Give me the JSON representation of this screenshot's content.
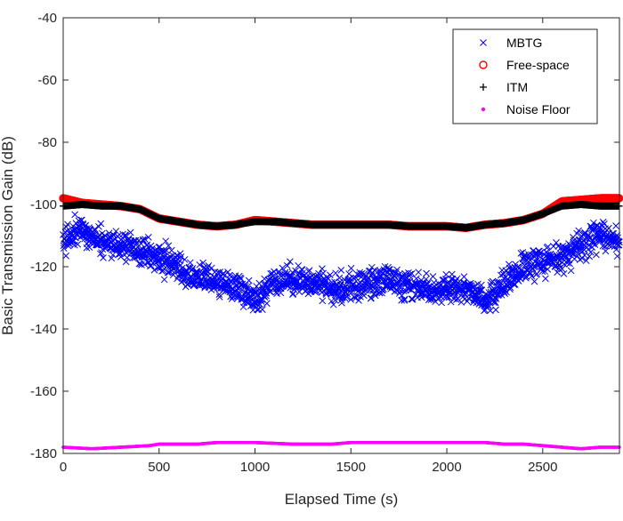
{
  "chart_data": {
    "type": "scatter",
    "title": "",
    "xlabel": "Elapsed Time (s)",
    "ylabel": "Basic Transmission Gain (dB)",
    "xlim": [
      0,
      2900
    ],
    "ylim": [
      -180,
      -40
    ],
    "xticks": [
      0,
      500,
      1000,
      1500,
      2000,
      2500
    ],
    "yticks": [
      -180,
      -160,
      -140,
      -120,
      -100,
      -80,
      -60,
      -40
    ],
    "grid": false,
    "legend_position": "top-right",
    "series": [
      {
        "name": "MBTG",
        "marker": "x",
        "color": "#0000ff",
        "trend_x": [
          0,
          100,
          200,
          300,
          400,
          500,
          600,
          700,
          800,
          900,
          1000,
          1100,
          1200,
          1300,
          1400,
          1500,
          1600,
          1700,
          1800,
          1900,
          2000,
          2100,
          2200,
          2300,
          2400,
          2500,
          2600,
          2700,
          2800,
          2900
        ],
        "trend_y": [
          -112,
          -108,
          -112,
          -113,
          -115,
          -117,
          -121,
          -123,
          -125,
          -126,
          -131,
          -124,
          -125,
          -124,
          -127,
          -126,
          -126,
          -124,
          -126,
          -127,
          -128,
          -127,
          -131,
          -126,
          -120,
          -118,
          -117,
          -113,
          -110,
          -112
        ],
        "spread_dB": 7
      },
      {
        "name": "Free-space",
        "marker": "o",
        "color": "#ff0000",
        "x": [
          0,
          100,
          200,
          300,
          400,
          500,
          600,
          700,
          800,
          900,
          1000,
          1100,
          1200,
          1300,
          1400,
          1500,
          1600,
          1700,
          1800,
          1900,
          2000,
          2100,
          2200,
          2300,
          2400,
          2500,
          2600,
          2700,
          2800,
          2900
        ],
        "y": [
          -98,
          -99.5,
          -100,
          -100.5,
          -101.5,
          -104.5,
          -105.5,
          -106.5,
          -107,
          -106.5,
          -105,
          -105.5,
          -106,
          -106.5,
          -106.5,
          -106.5,
          -106.5,
          -106.5,
          -107,
          -107,
          -107,
          -107.5,
          -106.5,
          -106,
          -105,
          -103,
          -99,
          -98.5,
          -98,
          -98
        ]
      },
      {
        "name": "ITM",
        "marker": "+",
        "color": "#000000",
        "x": [
          0,
          100,
          200,
          300,
          400,
          500,
          600,
          700,
          800,
          900,
          1000,
          1100,
          1200,
          1300,
          1400,
          1500,
          1600,
          1700,
          1800,
          1900,
          2000,
          2100,
          2200,
          2300,
          2400,
          2500,
          2600,
          2700,
          2800,
          2900
        ],
        "y": [
          -100.5,
          -100,
          -100.5,
          -100.5,
          -101.5,
          -104.5,
          -105.5,
          -106.5,
          -107,
          -106.5,
          -105.5,
          -105.5,
          -106,
          -106.5,
          -106.5,
          -106.5,
          -106.5,
          -106.5,
          -107,
          -107,
          -107,
          -107.5,
          -106.5,
          -106,
          -105,
          -103,
          -100.5,
          -100,
          -100.5,
          -100.5
        ]
      },
      {
        "name": "Noise Floor",
        "marker": ".",
        "color": "#ff00ff",
        "x": [
          0,
          150,
          300,
          450,
          500,
          700,
          800,
          1000,
          1200,
          1300,
          1400,
          1500,
          1700,
          1800,
          2000,
          2200,
          2300,
          2400,
          2500,
          2600,
          2700,
          2800,
          2900
        ],
        "y": [
          -178,
          -178.5,
          -178,
          -177.5,
          -177,
          -177,
          -176.5,
          -176.5,
          -177,
          -177,
          -177,
          -176.5,
          -176.5,
          -176.5,
          -176.5,
          -176.5,
          -177,
          -177,
          -177.5,
          -178,
          -178.5,
          -178,
          -178
        ]
      }
    ]
  }
}
